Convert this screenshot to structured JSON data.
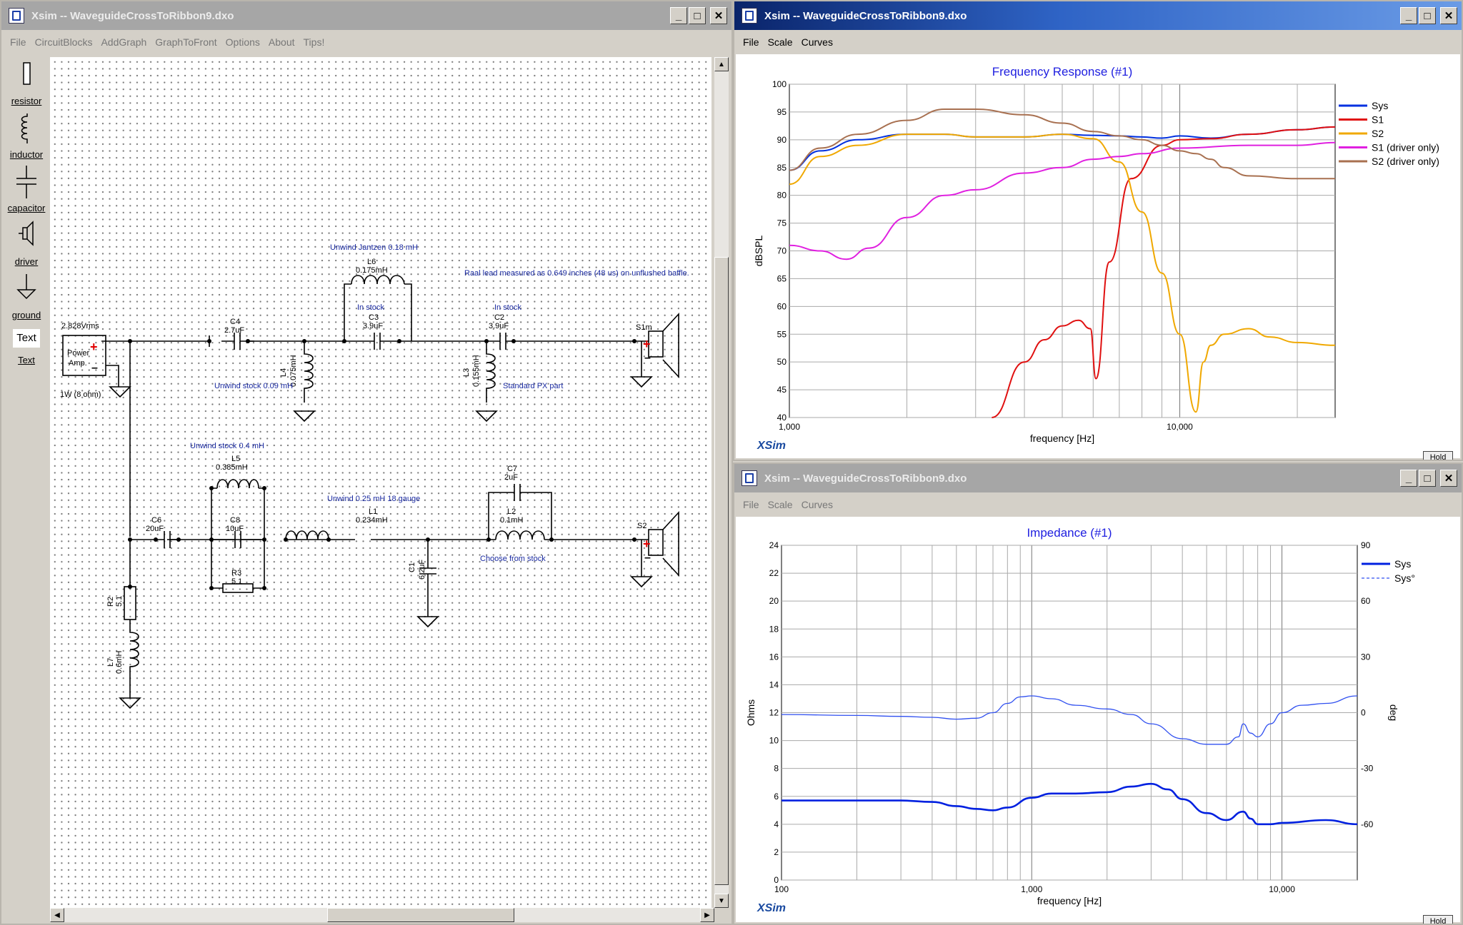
{
  "circuit_window": {
    "title": "Xsim -- WaveguideCrossToRibbon9.dxo",
    "menu": [
      "File",
      "CircuitBlocks",
      "AddGraph",
      "GraphToFront",
      "Options",
      "About",
      "Tips!"
    ],
    "tools": [
      {
        "label": "resistor",
        "icon": "resistor-icon"
      },
      {
        "label": "inductor",
        "icon": "inductor-icon"
      },
      {
        "label": "capacitor",
        "icon": "capacitor-icon"
      },
      {
        "label": "driver",
        "icon": "driver-icon"
      },
      {
        "label": "ground",
        "icon": "ground-icon"
      },
      {
        "label": "Text",
        "icon": "text-icon"
      }
    ],
    "text_tool_glyph": "Text",
    "schematic": {
      "source_voltage": "2.828Vrms",
      "amp_line1": "Power",
      "amp_line2": "Amp.",
      "source_power": "1W (8 ohm)",
      "notes": {
        "unwind_jantzen": "Unwind Jantzen 0.18 mH",
        "raal": "Raal lead measured as 0.649 inches (48 us) on unflushed baffle.",
        "in_stock_1": "In stock",
        "in_stock_2": "In stock",
        "unwind_009": "Unwind stock 0.09 mH",
        "standard_px": "Standard PX part",
        "unwind_04": "Unwind stock 0.4 mH",
        "unwind_025": "Unwind 0.25 mH 18 gauge",
        "choose_stock": "Choose from stock"
      },
      "components": {
        "C4": {
          "name": "C4",
          "value": "2.7uF"
        },
        "C3": {
          "name": "C3",
          "value": "3.9uF"
        },
        "C2": {
          "name": "C2",
          "value": "3.9uF"
        },
        "L6": {
          "name": "L6",
          "value": "0.175mH"
        },
        "L4": {
          "name": "L4",
          "value": "0.075mH"
        },
        "L3": {
          "name": "L3",
          "value": "0.155mH"
        },
        "S1m": {
          "name": "S1m"
        },
        "S2": {
          "name": "S2"
        },
        "L5": {
          "name": "L5",
          "value": "0.385mH"
        },
        "C8": {
          "name": "C8",
          "value": "10uF"
        },
        "R3": {
          "name": "R3",
          "value": "5.1"
        },
        "C6": {
          "name": "C6",
          "value": "20uF"
        },
        "L1": {
          "name": "L1",
          "value": "0.234mH"
        },
        "C7": {
          "name": "C7",
          "value": "2uF"
        },
        "L2": {
          "name": "L2",
          "value": "0.1mH"
        },
        "C1": {
          "name": "C1",
          "value": "6.2uF"
        },
        "R2": {
          "name": "R2",
          "value": "5.1"
        },
        "L7": {
          "name": "L7",
          "value": "0.6mH"
        }
      }
    }
  },
  "fr_window": {
    "title": "Xsim -- WaveguideCrossToRibbon9.dxo",
    "menu": [
      "File",
      "Scale",
      "Curves"
    ],
    "brand": "XSim",
    "hold": "Hold"
  },
  "imp_window": {
    "title": "Xsim -- WaveguideCrossToRibbon9.dxo",
    "menu": [
      "File",
      "Scale",
      "Curves"
    ],
    "brand": "XSim",
    "hold": "Hold"
  },
  "chart_data": [
    {
      "type": "line",
      "title": "Frequency Response (#1)",
      "xlabel": "frequency [Hz]",
      "ylabel": "dBSPL",
      "xscale": "log",
      "xlim": [
        1000,
        25000
      ],
      "ylim": [
        40,
        100
      ],
      "xticks": [
        {
          "v": 1000,
          "label": "1,000"
        },
        {
          "v": 10000,
          "label": "10,000"
        }
      ],
      "yticks": [
        40,
        45,
        50,
        55,
        60,
        65,
        70,
        75,
        80,
        85,
        90,
        95,
        100
      ],
      "grid": true,
      "legend_position": "right",
      "series": [
        {
          "name": "Sys",
          "color": "#0030e0",
          "x": [
            1000,
            1200,
            1500,
            2000,
            2500,
            3000,
            4000,
            5000,
            6000,
            7000,
            8000,
            9000,
            10000,
            12000,
            15000,
            20000,
            25000
          ],
          "y": [
            84.5,
            88,
            90,
            91,
            91,
            90.5,
            90.5,
            91,
            90.8,
            90.7,
            90.5,
            90.3,
            90.7,
            90.3,
            91,
            91.8,
            92.3
          ]
        },
        {
          "name": "S1",
          "color": "#e01010",
          "x": [
            3300,
            4000,
            4500,
            5000,
            5500,
            5900,
            6100,
            6600,
            7500,
            9000,
            10000,
            12000,
            15000,
            20000,
            25000
          ],
          "y": [
            40,
            50,
            54,
            56.5,
            57.5,
            56,
            47,
            68,
            83,
            89,
            90,
            90.2,
            91,
            91.8,
            92.3
          ]
        },
        {
          "name": "S2",
          "color": "#f0a800",
          "x": [
            1000,
            1200,
            1500,
            2000,
            2500,
            3000,
            4000,
            5000,
            6000,
            7000,
            8000,
            9000,
            10000,
            11000,
            11500,
            12000,
            13000,
            15000,
            17000,
            20000,
            25000
          ],
          "y": [
            82,
            87,
            89,
            91,
            91,
            90.5,
            90.5,
            91,
            90.2,
            86,
            77,
            66,
            55,
            41,
            50,
            53,
            55,
            56,
            54.5,
            53.5,
            53
          ]
        },
        {
          "name": "S1 (driver only)",
          "color": "#e020e0",
          "x": [
            1000,
            1200,
            1400,
            1600,
            2000,
            2500,
            3000,
            4000,
            5000,
            6000,
            7000,
            8000,
            10000,
            15000,
            20000,
            25000
          ],
          "y": [
            71,
            70,
            68.5,
            70.5,
            76,
            80,
            81,
            84,
            85,
            86.5,
            87,
            87.5,
            88.5,
            89,
            89,
            89.5
          ]
        },
        {
          "name": "S2 (driver only)",
          "color": "#a87050",
          "x": [
            1000,
            1200,
            1500,
            2000,
            2500,
            3000,
            4000,
            5000,
            6000,
            7000,
            8000,
            9000,
            10000,
            11000,
            12000,
            13000,
            15000,
            20000,
            25000
          ],
          "y": [
            84.5,
            88.5,
            91,
            93.5,
            95.5,
            95.5,
            94.5,
            93,
            91.5,
            90.7,
            90,
            89,
            88,
            87.5,
            86.5,
            85,
            83.5,
            83,
            83
          ]
        }
      ]
    },
    {
      "type": "line",
      "title": "Impedance (#1)",
      "xlabel": "frequency [Hz]",
      "ylabel": "Ohms",
      "y2label": "deg",
      "xscale": "log",
      "xlim": [
        100,
        20000
      ],
      "ylim": [
        0,
        24
      ],
      "y2lim": [
        -90,
        90
      ],
      "xticks": [
        {
          "v": 100,
          "label": "100"
        },
        {
          "v": 1000,
          "label": "1,000"
        },
        {
          "v": 10000,
          "label": "10,000"
        }
      ],
      "yticks": [
        0,
        2,
        4,
        6,
        8,
        10,
        12,
        14,
        16,
        18,
        20,
        22,
        24
      ],
      "y2ticks": [
        -60,
        -30,
        0,
        30,
        60,
        90
      ],
      "grid": true,
      "legend_position": "top-right",
      "series": [
        {
          "name": "Sys",
          "color": "#0020e0",
          "axis": "left",
          "x": [
            100,
            200,
            300,
            400,
            500,
            600,
            700,
            800,
            1000,
            1200,
            1500,
            2000,
            2500,
            3000,
            3500,
            4000,
            5000,
            6000,
            7000,
            7500,
            8000,
            9000,
            10000,
            15000,
            20000
          ],
          "y": [
            5.7,
            5.7,
            5.7,
            5.6,
            5.3,
            5.1,
            5.0,
            5.2,
            5.9,
            6.2,
            6.2,
            6.3,
            6.7,
            6.9,
            6.5,
            5.8,
            4.8,
            4.3,
            4.9,
            4.4,
            4.0,
            4.0,
            4.1,
            4.3,
            4.0
          ]
        },
        {
          "name": "Sys°",
          "color": "#3050f0",
          "axis": "right",
          "x": [
            100,
            200,
            300,
            400,
            500,
            600,
            700,
            800,
            900,
            1000,
            1200,
            1500,
            2000,
            2500,
            3000,
            4000,
            5000,
            6000,
            6700,
            7000,
            7500,
            8000,
            9000,
            10000,
            12000,
            15000,
            20000
          ],
          "y": [
            -1,
            -1.5,
            -2,
            -2.5,
            -3.5,
            -3,
            0,
            5,
            8.5,
            9,
            7.5,
            4,
            2,
            -1,
            -6,
            -14,
            -17,
            -17,
            -13,
            -6,
            -11,
            -13,
            -6,
            0,
            4,
            5,
            9
          ]
        }
      ]
    }
  ]
}
